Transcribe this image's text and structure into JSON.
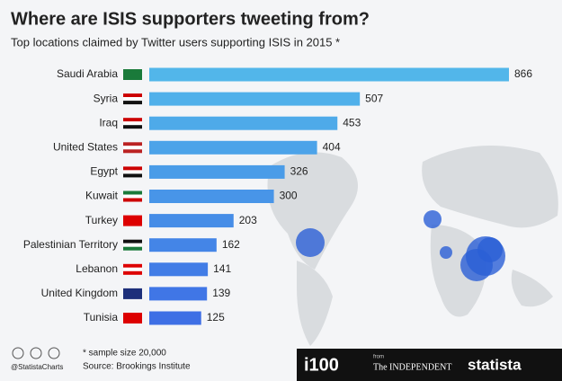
{
  "chart_data": {
    "type": "bar",
    "orientation": "horizontal",
    "title": "Where are ISIS supporters tweeting from?",
    "subtitle": "Top locations claimed by Twitter users supporting ISIS in 2015 *",
    "categories": [
      "Saudi Arabia",
      "Syria",
      "Iraq",
      "United States",
      "Egypt",
      "Kuwait",
      "Turkey",
      "Palestinian Territory",
      "Lebanon",
      "United Kingdom",
      "Tunisia"
    ],
    "values": [
      866,
      507,
      453,
      404,
      326,
      300,
      203,
      162,
      141,
      139,
      125
    ],
    "colors": [
      "#52b6ea",
      "#50b0ea",
      "#4eaae9",
      "#4ca3e9",
      "#4a9ce8",
      "#4895e8",
      "#468de7",
      "#4485e7",
      "#427de6",
      "#4076e6",
      "#3e6fe5"
    ],
    "note": "* sample size 20,000",
    "source": "Source: Brookings Institute"
  },
  "footer": {
    "handle": "@StatistaCharts",
    "brand": "i100",
    "from": "from",
    "publisher": "The INDEPENDENT",
    "statista": "statista"
  }
}
